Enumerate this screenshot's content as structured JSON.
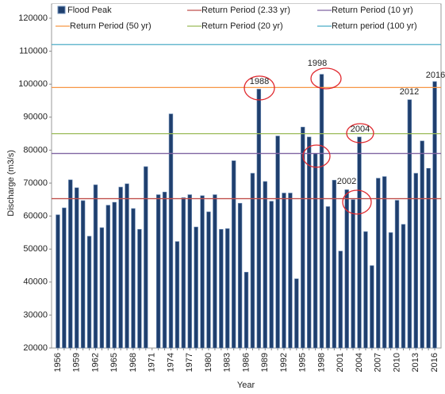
{
  "chart_data": {
    "type": "bar",
    "x_label": "Year",
    "y_label": "Discharge (m3/s)",
    "categories": [
      "1956",
      null,
      null,
      "1959",
      null,
      null,
      "1962",
      null,
      null,
      "1965",
      null,
      null,
      "1968",
      null,
      null,
      "1971",
      null,
      null,
      "1974",
      null,
      null,
      "1977",
      null,
      null,
      "1980",
      null,
      null,
      "1983",
      null,
      null,
      "1986",
      null,
      null,
      "1989",
      null,
      null,
      "1992",
      null,
      null,
      "1995",
      null,
      null,
      "1998",
      null,
      null,
      "2001",
      null,
      null,
      "2004",
      null,
      null,
      "2007",
      null,
      null,
      "2010",
      null,
      null,
      "2013",
      null,
      null,
      "2016"
    ],
    "series": [
      {
        "name": "Flood Peak",
        "color": "#1f3f6e",
        "values": [
          60400,
          62500,
          71000,
          68600,
          64700,
          53900,
          69500,
          56500,
          63300,
          64200,
          68800,
          69800,
          62300,
          56000,
          75000,
          null,
          66500,
          67300,
          91000,
          52300,
          65600,
          66500,
          56700,
          66200,
          61300,
          66500,
          56000,
          56200,
          76800,
          63900,
          43000,
          73000,
          98500,
          70500,
          64500,
          84300,
          67000,
          67000,
          41000,
          87000,
          84000,
          79000,
          103000,
          62900,
          70900,
          49400,
          68000,
          65000,
          84000,
          55300,
          45000,
          71500,
          72000,
          55000,
          64800,
          57500,
          95300,
          73000,
          82800,
          74500,
          100800
        ]
      }
    ],
    "reference_lines": [
      {
        "name": "Return Period (2.33 yr)",
        "color": "#c0504d",
        "value": 65300
      },
      {
        "name": "Return Period (10 yr)",
        "color": "#8064a2",
        "value": 79000
      },
      {
        "name": "Return Period (50 yr)",
        "color": "#f79646",
        "value": 99000
      },
      {
        "name": "Return Period (20 yr)",
        "color": "#9bbb59",
        "value": 85000
      },
      {
        "name": "Return period (100 yr)",
        "color": "#4bacc6",
        "value": 112000
      }
    ],
    "annotations": [
      "1988",
      "1998",
      "2002",
      "2004",
      "2012",
      "2016"
    ],
    "ylim": [
      20000,
      120000
    ],
    "yticks": [
      20000,
      30000,
      40000,
      50000,
      60000,
      70000,
      80000,
      90000,
      100000,
      110000,
      120000
    ]
  }
}
